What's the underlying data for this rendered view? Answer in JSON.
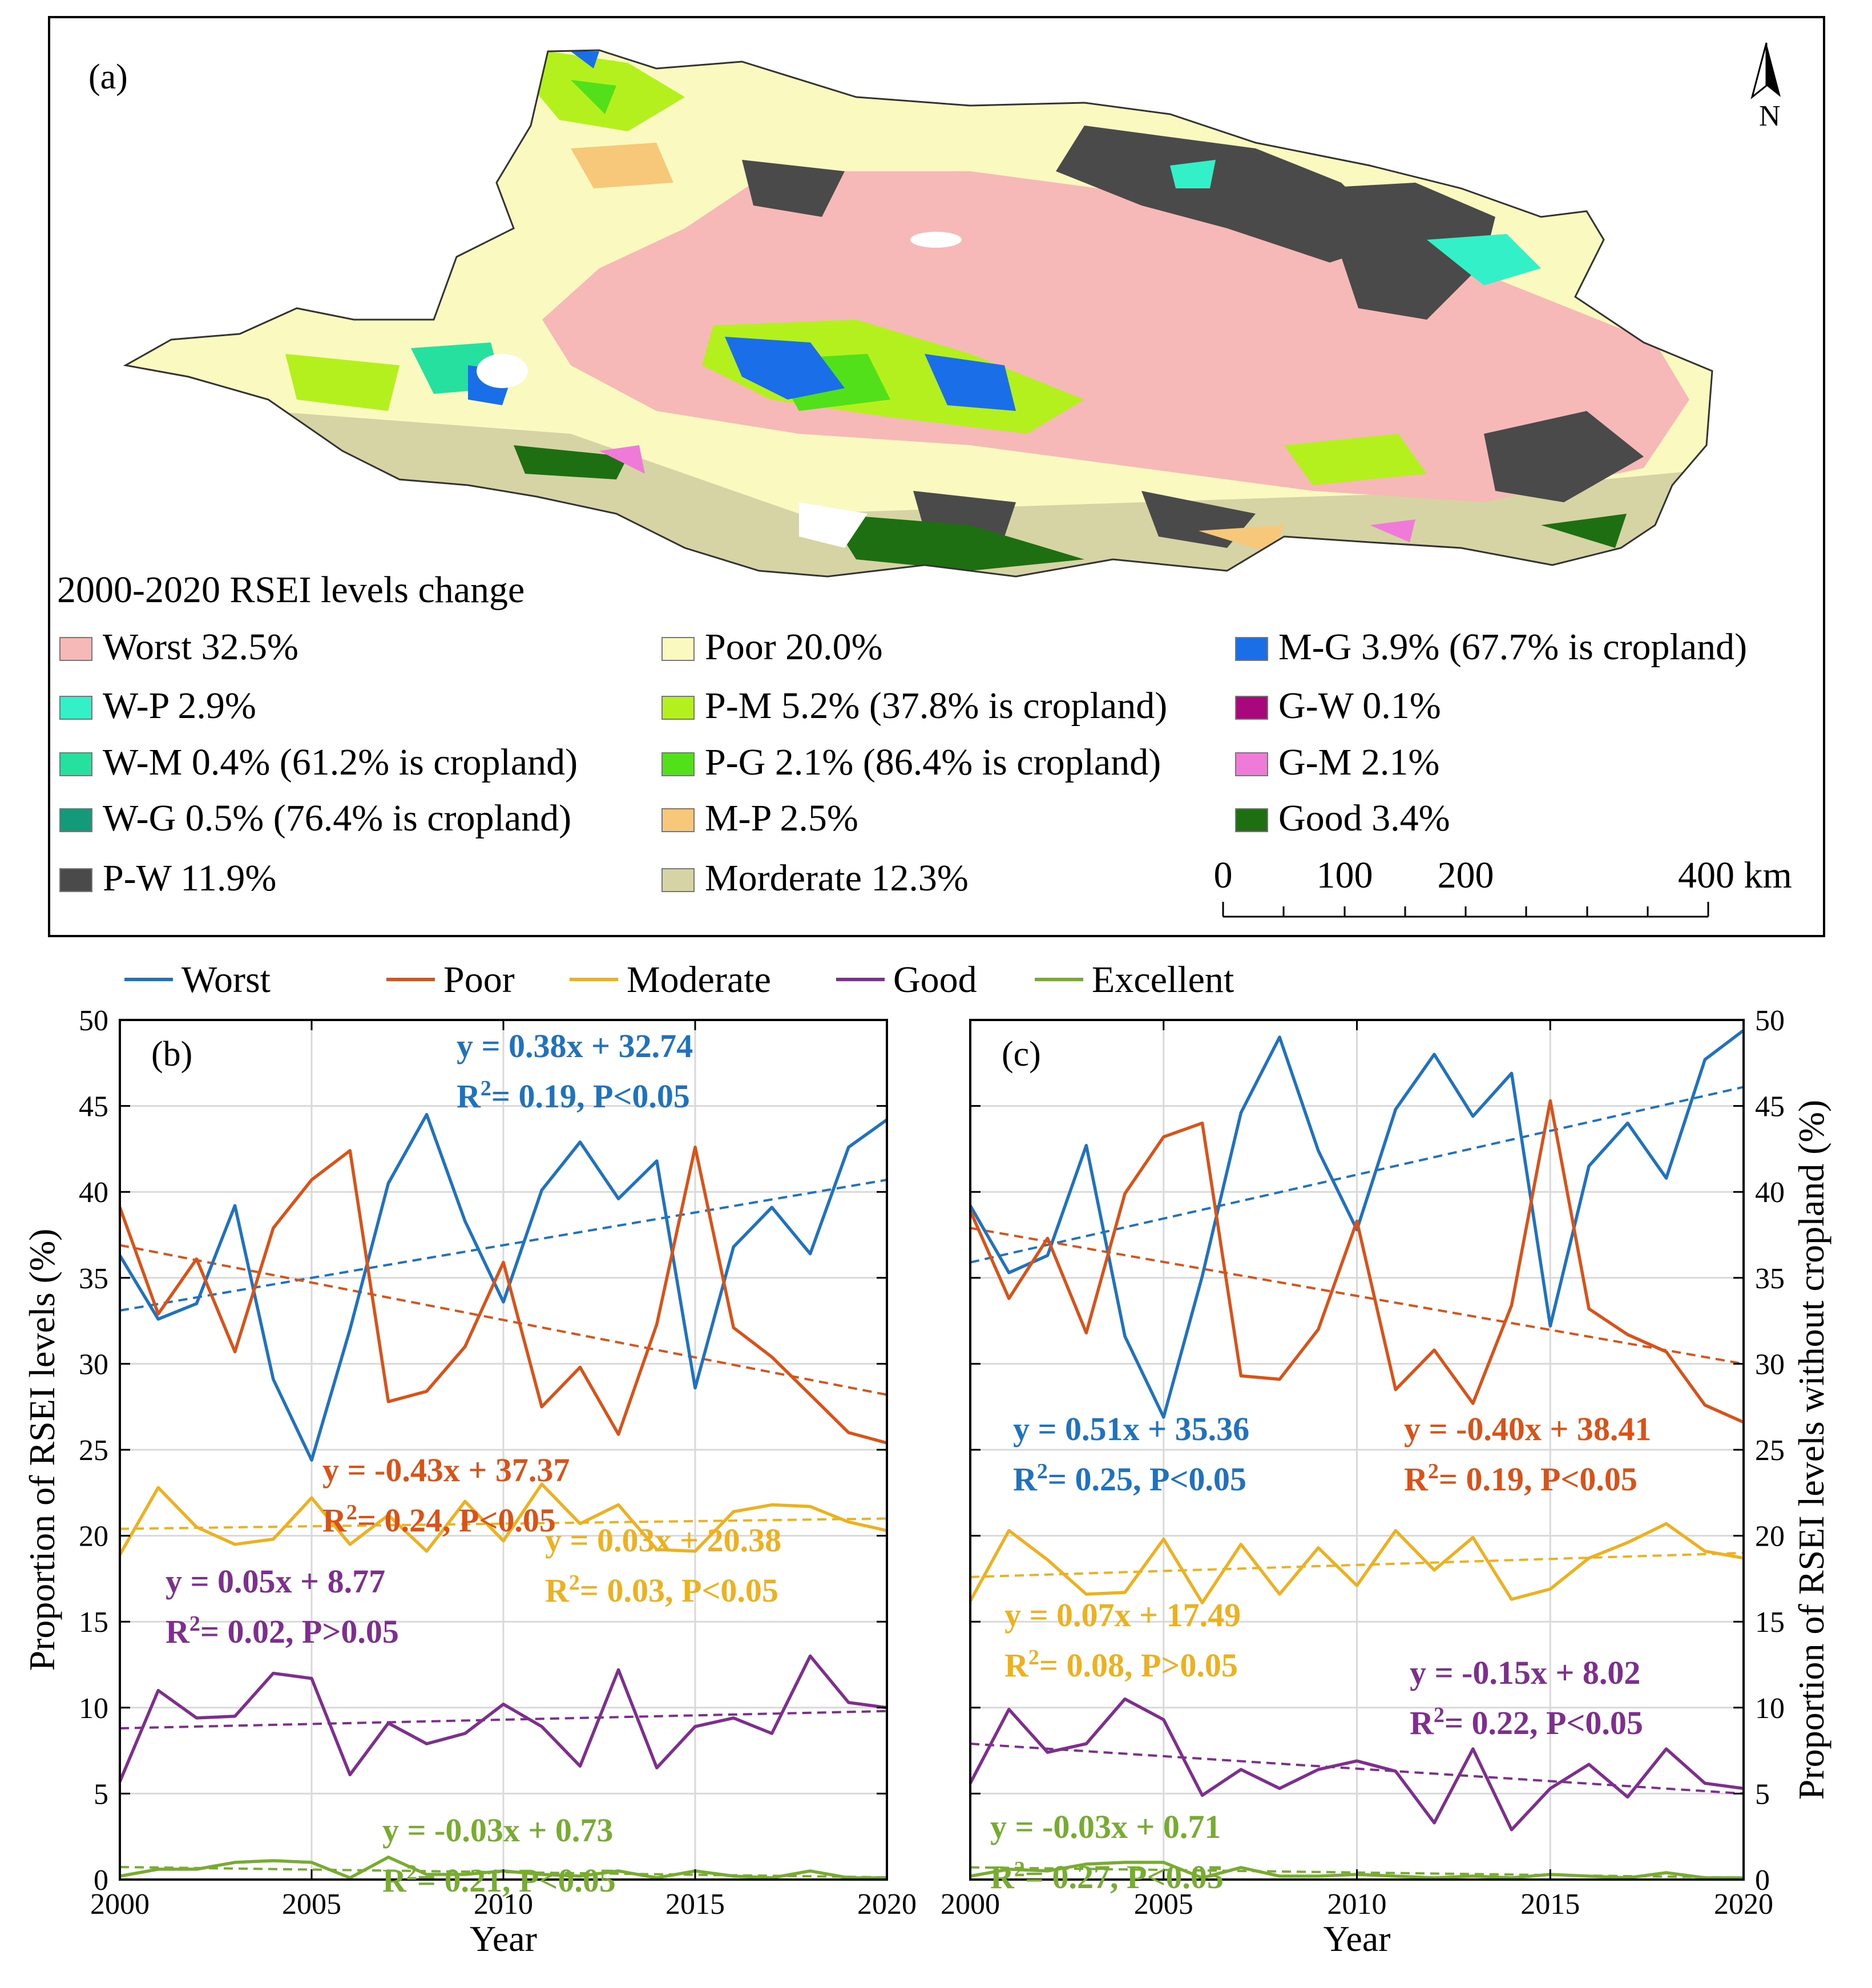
{
  "panel_a": {
    "label": "(a)",
    "north_label": "N",
    "legend_title": "2000-2020 RSEI levels change",
    "legend_items": [
      {
        "label": "Worst 32.5%",
        "color": "#f7b8b8"
      },
      {
        "label": "W-P 2.9%",
        "color": "#33f0c8"
      },
      {
        "label": "W-M 0.4% (61.2% is cropland)",
        "color": "#26e0a0"
      },
      {
        "label": "W-G 0.5% (76.4% is cropland)",
        "color": "#139a78"
      },
      {
        "label": "P-W 11.9%",
        "color": "#4a4a4a"
      },
      {
        "label": "Poor 20.0%",
        "color": "#fafac0"
      },
      {
        "label": "P-M 5.2% (37.8% is cropland)",
        "color": "#b4f01e"
      },
      {
        "label": "P-G 2.1% (86.4% is cropland)",
        "color": "#52e01a"
      },
      {
        "label": "M-P 2.5%",
        "color": "#f7c87a"
      },
      {
        "label": "Morderate 12.3%",
        "color": "#d6d4a4"
      },
      {
        "label": "M-G 3.9% (67.7% is cropland)",
        "color": "#1a6ee8"
      },
      {
        "label": "G-W 0.1%",
        "color": "#a8087c"
      },
      {
        "label": "G-M 2.1%",
        "color": "#f07ad8"
      },
      {
        "label": "Good 3.4%",
        "color": "#1e6e12"
      }
    ],
    "scale_bar": {
      "ticks": [
        "0",
        "100",
        "200",
        "400 km"
      ]
    }
  },
  "series_legend": [
    {
      "name": "Worst",
      "color": "#1f72bd"
    },
    {
      "name": "Poor",
      "color": "#d95319"
    },
    {
      "name": "Moderate",
      "color": "#edb120"
    },
    {
      "name": "Good",
      "color": "#7e2f8e"
    },
    {
      "name": "Excellent",
      "color": "#77ac30"
    }
  ],
  "chart_data": [
    {
      "type": "line",
      "panel_label": "(b)",
      "xlabel": "Year",
      "ylabel": "Proportion of RSEI levels (%)",
      "xlim": [
        2000,
        2020
      ],
      "ylim": [
        0,
        50
      ],
      "x_ticks": [
        "2000",
        "2005",
        "2010",
        "2015",
        "2020"
      ],
      "y_ticks": [
        "0",
        "5",
        "10",
        "15",
        "20",
        "25",
        "30",
        "35",
        "40",
        "45",
        "50"
      ],
      "grid": true,
      "x": [
        2000,
        2001,
        2002,
        2003,
        2004,
        2005,
        2006,
        2007,
        2008,
        2009,
        2010,
        2011,
        2012,
        2013,
        2014,
        2015,
        2016,
        2017,
        2018,
        2019,
        2020
      ],
      "series": [
        {
          "name": "Worst",
          "color": "#1f72bd",
          "values": [
            36.3,
            32.6,
            33.5,
            39.2,
            29.1,
            24.4,
            32.0,
            40.5,
            44.5,
            38.3,
            33.6,
            40.1,
            42.9,
            39.6,
            41.8,
            28.6,
            36.8,
            39.1,
            36.4,
            42.6,
            44.2
          ],
          "trend": [
            33.1,
            40.7
          ],
          "equation": "y =  0.38x + 32.74",
          "r2": "2",
          "r2_pre": "R",
          "r2_post": "= 0.19, P<0.05"
        },
        {
          "name": "Poor",
          "color": "#d95319",
          "values": [
            39.1,
            32.9,
            36.1,
            30.7,
            37.9,
            40.7,
            42.4,
            27.8,
            28.4,
            31.0,
            35.9,
            27.5,
            29.8,
            25.9,
            32.3,
            42.6,
            32.1,
            30.4,
            28.2,
            26.0,
            25.4
          ],
          "trend": [
            36.9,
            28.2
          ],
          "equation": "y = -0.43x + 37.37",
          "r2": "2",
          "r2_pre": "R",
          "r2_post": "= 0.24, P<0.05"
        },
        {
          "name": "Moderate",
          "color": "#edb120",
          "values": [
            18.9,
            22.8,
            20.5,
            19.5,
            19.8,
            22.2,
            19.5,
            21.2,
            19.1,
            22.0,
            19.7,
            23.0,
            20.7,
            21.8,
            19.2,
            19.1,
            21.4,
            21.8,
            21.7,
            20.8,
            20.3
          ],
          "trend": [
            20.4,
            21.0
          ],
          "equation": "y = 0.03x + 20.38",
          "r2": "2",
          "r2_pre": "R",
          "r2_post": "= 0.03, P<0.05"
        },
        {
          "name": "Good",
          "color": "#7e2f8e",
          "values": [
            5.7,
            11.0,
            9.4,
            9.5,
            12.0,
            11.7,
            6.1,
            9.1,
            7.9,
            8.5,
            10.2,
            8.9,
            6.6,
            12.2,
            6.5,
            8.9,
            9.4,
            8.5,
            13.0,
            10.3,
            10.0
          ],
          "trend": [
            8.8,
            9.8
          ],
          "equation": "y = 0.05x + 8.77",
          "r2": "2",
          "r2_pre": "R",
          "r2_post": "= 0.02, P>0.05"
        },
        {
          "name": "Excellent",
          "color": "#77ac30",
          "values": [
            0.2,
            0.6,
            0.6,
            1.0,
            1.1,
            1.0,
            0.1,
            1.3,
            0.3,
            0.3,
            0.5,
            0.3,
            0.2,
            0.5,
            0.1,
            0.5,
            0.2,
            0.1,
            0.5,
            0.1,
            0.1
          ],
          "trend": [
            0.73,
            0.13
          ],
          "equation": "y = -0.03x + 0.73",
          "r2": "2",
          "r2_pre": "R",
          "r2_post": "= 0.21, P<0.05"
        }
      ]
    },
    {
      "type": "line",
      "panel_label": "(c)",
      "xlabel": "Year",
      "ylabel": "Proportion of RSEI levels without cropland (%)",
      "xlim": [
        2000,
        2020
      ],
      "ylim": [
        0,
        50
      ],
      "x_ticks": [
        "2000",
        "2005",
        "2010",
        "2015",
        "2020"
      ],
      "y_ticks": [
        "0",
        "5",
        "10",
        "15",
        "20",
        "25",
        "30",
        "35",
        "40",
        "45",
        "50"
      ],
      "grid": true,
      "x": [
        2000,
        2001,
        2002,
        2003,
        2004,
        2005,
        2006,
        2007,
        2008,
        2009,
        2010,
        2011,
        2012,
        2013,
        2014,
        2015,
        2016,
        2017,
        2018,
        2019,
        2020
      ],
      "series": [
        {
          "name": "Worst",
          "color": "#1f72bd",
          "values": [
            39.2,
            35.3,
            36.3,
            42.7,
            31.6,
            26.9,
            35.1,
            44.6,
            49.0,
            42.4,
            37.8,
            44.8,
            48.0,
            44.4,
            46.9,
            32.2,
            41.5,
            44.0,
            40.8,
            47.7,
            49.4
          ],
          "trend": [
            35.9,
            46.1
          ],
          "equation": "y = 0.51x + 35.36",
          "r2": "2",
          "r2_pre": "R",
          "r2_post": "= 0.25, P<0.05"
        },
        {
          "name": "Poor",
          "color": "#d95319",
          "values": [
            38.9,
            33.8,
            37.3,
            31.8,
            39.9,
            43.2,
            44.0,
            29.3,
            29.1,
            32.0,
            38.3,
            28.5,
            30.8,
            27.7,
            33.4,
            45.3,
            33.2,
            31.7,
            30.7,
            27.6,
            26.6
          ],
          "trend": [
            37.9,
            30.0
          ],
          "equation": "y = -0.40x + 38.41",
          "r2": "2",
          "r2_pre": "R",
          "r2_post": "= 0.19, P<0.05"
        },
        {
          "name": "Moderate",
          "color": "#edb120",
          "values": [
            16.2,
            20.3,
            18.6,
            16.6,
            16.7,
            19.8,
            16.1,
            19.5,
            16.6,
            19.3,
            17.1,
            20.3,
            18.0,
            19.9,
            16.3,
            16.9,
            18.7,
            19.6,
            20.7,
            19.1,
            18.7
          ],
          "trend": [
            17.6,
            19.0
          ],
          "equation": "y = 0.07x + 17.49",
          "r2": "2",
          "r2_pre": "R",
          "r2_post": "= 0.08, P>0.05"
        },
        {
          "name": "Good",
          "color": "#7e2f8e",
          "values": [
            5.6,
            9.9,
            7.4,
            7.9,
            10.5,
            9.3,
            4.9,
            6.4,
            5.3,
            6.4,
            6.9,
            6.3,
            3.3,
            7.6,
            2.9,
            5.3,
            6.7,
            4.8,
            7.6,
            5.6,
            5.3
          ],
          "trend": [
            7.9,
            5.0
          ],
          "equation": "y = -0.15x + 8.02",
          "r2": "2",
          "r2_pre": "R",
          "r2_post": "= 0.22, P<0.05"
        },
        {
          "name": "Excellent",
          "color": "#77ac30",
          "values": [
            0.2,
            0.6,
            0.5,
            0.9,
            1.0,
            1.0,
            0.1,
            0.7,
            0.2,
            0.2,
            0.3,
            0.2,
            0.1,
            0.2,
            0.1,
            0.3,
            0.2,
            0.1,
            0.4,
            0.1,
            0.1
          ],
          "trend": [
            0.71,
            0.11
          ],
          "equation": "y = -0.03x + 0.71",
          "r2": "2",
          "r2_pre": "R",
          "r2_post": "= 0.27, P<0.05"
        }
      ]
    }
  ]
}
